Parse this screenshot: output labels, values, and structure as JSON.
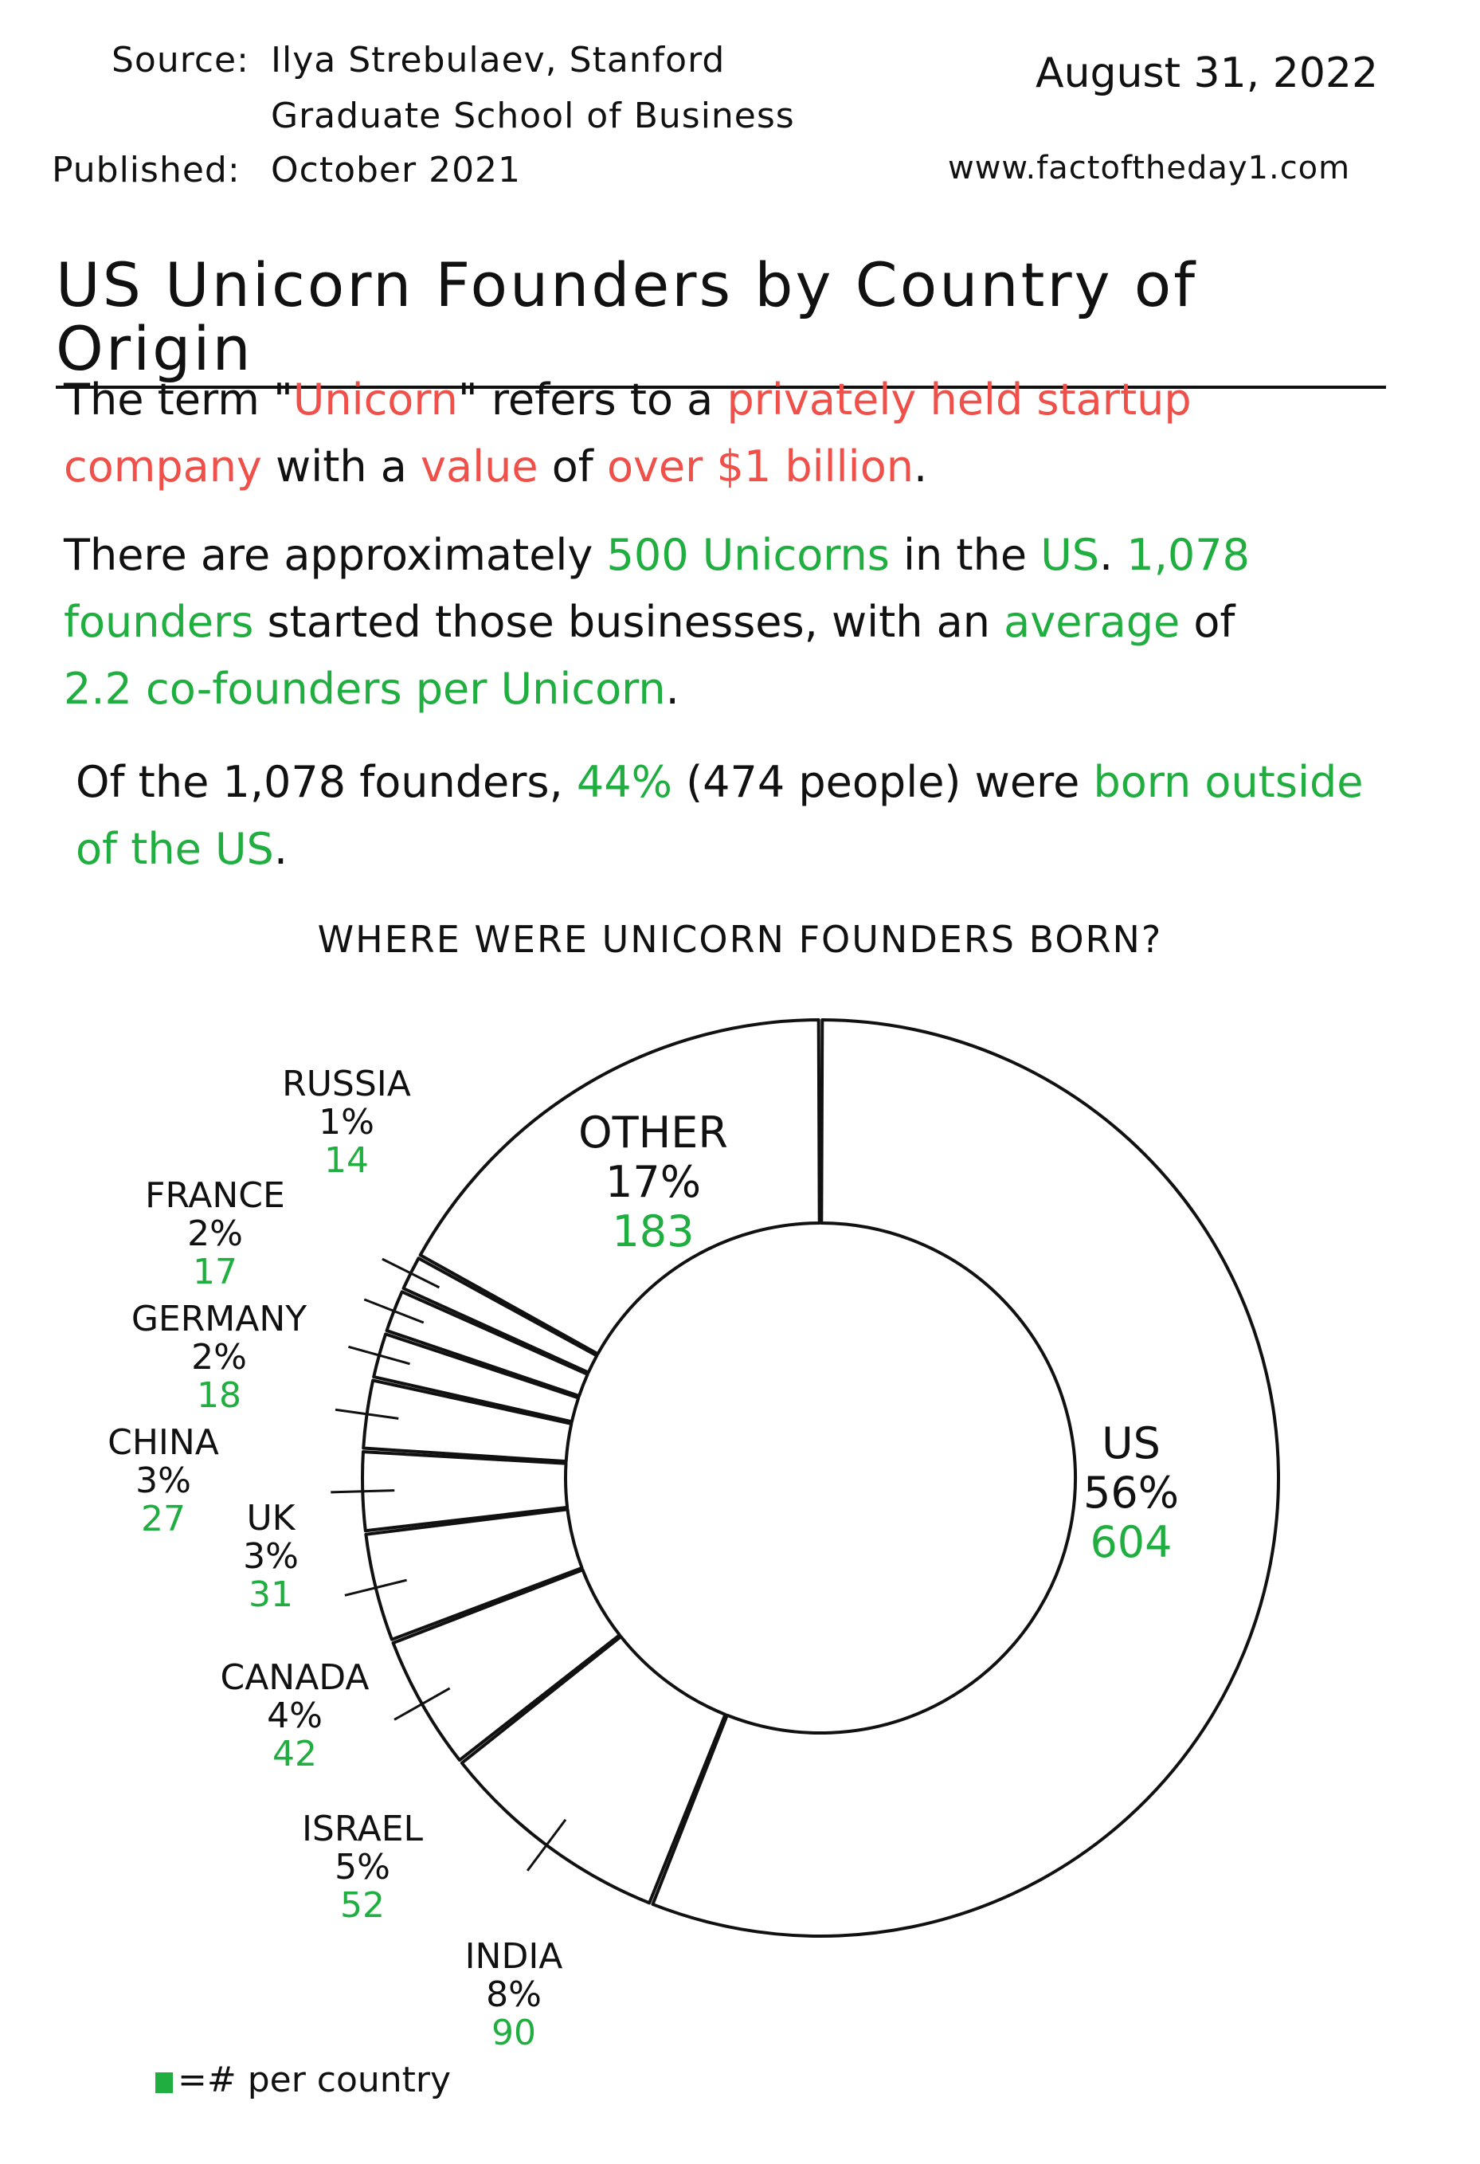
{
  "header": {
    "source_label": "Source:",
    "source_line1": "Ilya Strebulaev, Stanford",
    "source_line2": "Graduate School of Business",
    "published_label": "Published:",
    "published_value": "October 2021",
    "date": "August 31, 2022",
    "website": "www.factoftheday1.com"
  },
  "title": "US Unicorn Founders by Country of Origin",
  "paragraph1": {
    "t1": "The term \"",
    "t2": "Unicorn",
    "t3": "\" refers to a ",
    "t4": "privately held startup company",
    "t5": " with a ",
    "t6": "value",
    "t7": " of ",
    "t8": "over $1 billion",
    "t9": "."
  },
  "paragraph2": {
    "t1": "There are approximately ",
    "t2": "500 Unicorns",
    "t3": " in the ",
    "t4": "US",
    "t5": ". ",
    "t6": "1,078 founders",
    "t7": " started those businesses, with an ",
    "t8": "average",
    "t9": " of ",
    "t10": "2.2 co-founders per Unicorn",
    "t11": "."
  },
  "paragraph3": {
    "t1": "Of the 1,078 founders, ",
    "t2": "44%",
    "t3": " (474 people) were ",
    "t4": "born outside of the US",
    "t5": "."
  },
  "legend": {
    "text": "=# per country"
  },
  "colors": {
    "text": "#111111",
    "red": "#f0504a",
    "green": "#1fae3f"
  },
  "chart_data": {
    "type": "pie",
    "donut": true,
    "title": "WHERE WERE UNICORN FOUNDERS BORN?",
    "categories": [
      "US",
      "INDIA",
      "ISRAEL",
      "CANADA",
      "UK",
      "CHINA",
      "GERMANY",
      "FRANCE",
      "RUSSIA",
      "OTHER"
    ],
    "percent_labels": [
      "56%",
      "8%",
      "5%",
      "4%",
      "3%",
      "3%",
      "2%",
      "2%",
      "1%",
      "17%"
    ],
    "values": [
      604,
      90,
      52,
      42,
      31,
      27,
      18,
      17,
      14,
      183
    ]
  }
}
